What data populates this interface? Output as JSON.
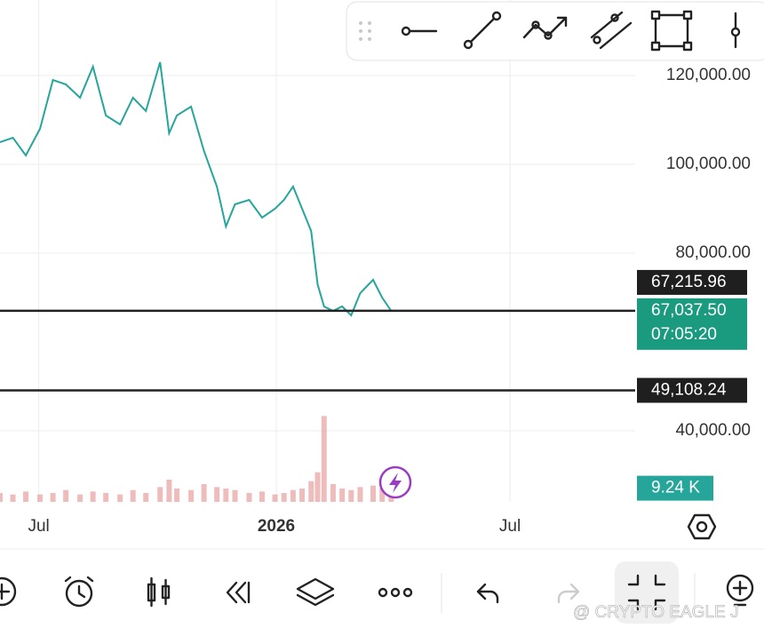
{
  "chart_data": {
    "type": "line",
    "x": [
      -214,
      -204,
      -194,
      -183,
      -173,
      -163,
      -152,
      -142,
      -132,
      -121,
      -111,
      -101,
      -90,
      -83,
      -77,
      -66,
      -56,
      -46,
      -39,
      -32,
      -21,
      -11,
      -1,
      6,
      13,
      20,
      27,
      32,
      37,
      44,
      51,
      58,
      65,
      75,
      82,
      89
    ],
    "series": [
      {
        "color": "#26a69a",
        "values": [
          105000,
          106000,
          102000,
          108000,
          119000,
          118000,
          115000,
          122000,
          111000,
          109000,
          115000,
          112000,
          123000,
          107000,
          111000,
          113000,
          103000,
          95000,
          86000,
          91000,
          92000,
          88000,
          90000,
          92000,
          95000,
          90000,
          85000,
          73000,
          68000,
          67000,
          68000,
          66000,
          71000,
          74000,
          70000,
          67000
        ]
      }
    ],
    "volume": {
      "color": "#e8a0a0",
      "values": [
        6,
        5,
        7,
        5,
        6,
        8,
        5,
        7,
        6,
        5,
        8,
        6,
        10,
        15,
        9,
        8,
        12,
        10,
        9,
        8,
        6,
        7,
        5,
        6,
        8,
        9,
        14,
        20,
        58,
        12,
        9,
        8,
        10,
        11,
        9,
        9.24
      ],
      "ylim": [
        0,
        60
      ],
      "last_label": {
        "value": 9.24,
        "label": "9.24 K"
      }
    },
    "xlim": [
      -214,
      278
    ],
    "xticks": [
      {
        "value": -184,
        "label": "Jul"
      },
      {
        "value": 0,
        "label": "2026"
      },
      {
        "value": 181,
        "label": "Jul"
      }
    ],
    "ylim": [
      24000,
      137000
    ],
    "yticks": [
      {
        "value": 120000,
        "label": "120,000.00"
      },
      {
        "value": 100000,
        "label": "100,000.00"
      },
      {
        "value": 80000,
        "label": "80,000.00"
      },
      {
        "value": 40000,
        "label": "40,000.00"
      }
    ],
    "grid": true,
    "high_tag": {
      "value": 67215.96,
      "label": "67,215.96"
    },
    "horizontal_lines": [
      {
        "value": 67037.5,
        "label": "67,037.50"
      },
      {
        "value": 49108.24,
        "label": "49,108.24"
      }
    ],
    "countdown": "07:05:20"
  },
  "watermark": "@ CRYPTO EAGLE J"
}
